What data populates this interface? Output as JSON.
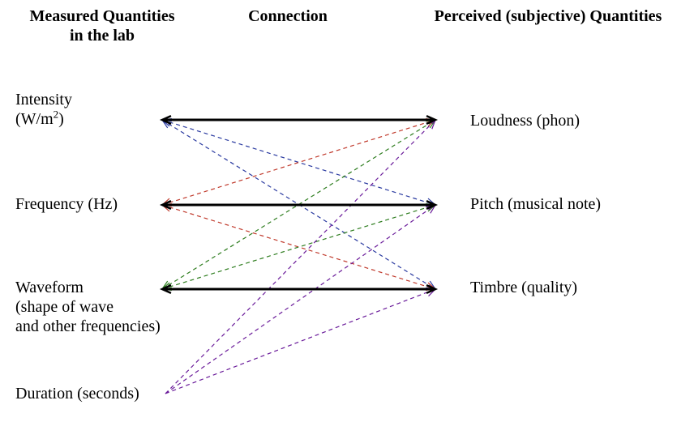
{
  "headers": {
    "measured": "Measured Quantities\nin the lab",
    "connection": "Connection",
    "perceived": "Perceived (subjective) Quantities"
  },
  "measured": {
    "intensity_line1": "Intensity",
    "intensity_unit_prefix": "(W/m",
    "intensity_unit_exp": "2",
    "intensity_unit_suffix": ")",
    "frequency": "Frequency (Hz)",
    "waveform_line1": "Waveform",
    "waveform_line2": "(shape of wave",
    "waveform_line3": "and other frequencies)",
    "duration": "Duration (seconds)"
  },
  "perceived": {
    "loudness": "Loudness (phon)",
    "pitch": "Pitch (musical note)",
    "timbre": "Timbre (quality)"
  },
  "colors": {
    "strong": "#000000",
    "intensity": "#2a3aa0",
    "frequency": "#c0392b",
    "waveform": "#2e7d1f",
    "duration": "#6a1b9a"
  },
  "connections": {
    "strong": [
      {
        "from": "intensity",
        "to": "loudness"
      },
      {
        "from": "frequency",
        "to": "pitch"
      },
      {
        "from": "waveform",
        "to": "timbre"
      }
    ],
    "weak": [
      {
        "from": "intensity",
        "to": "pitch",
        "color": "intensity"
      },
      {
        "from": "intensity",
        "to": "timbre",
        "color": "intensity"
      },
      {
        "from": "frequency",
        "to": "loudness",
        "color": "frequency"
      },
      {
        "from": "frequency",
        "to": "timbre",
        "color": "frequency"
      },
      {
        "from": "waveform",
        "to": "loudness",
        "color": "waveform"
      },
      {
        "from": "waveform",
        "to": "pitch",
        "color": "waveform"
      },
      {
        "from": "duration",
        "to": "loudness",
        "color": "duration"
      },
      {
        "from": "duration",
        "to": "pitch",
        "color": "duration"
      },
      {
        "from": "duration",
        "to": "timbre",
        "color": "duration"
      }
    ]
  }
}
